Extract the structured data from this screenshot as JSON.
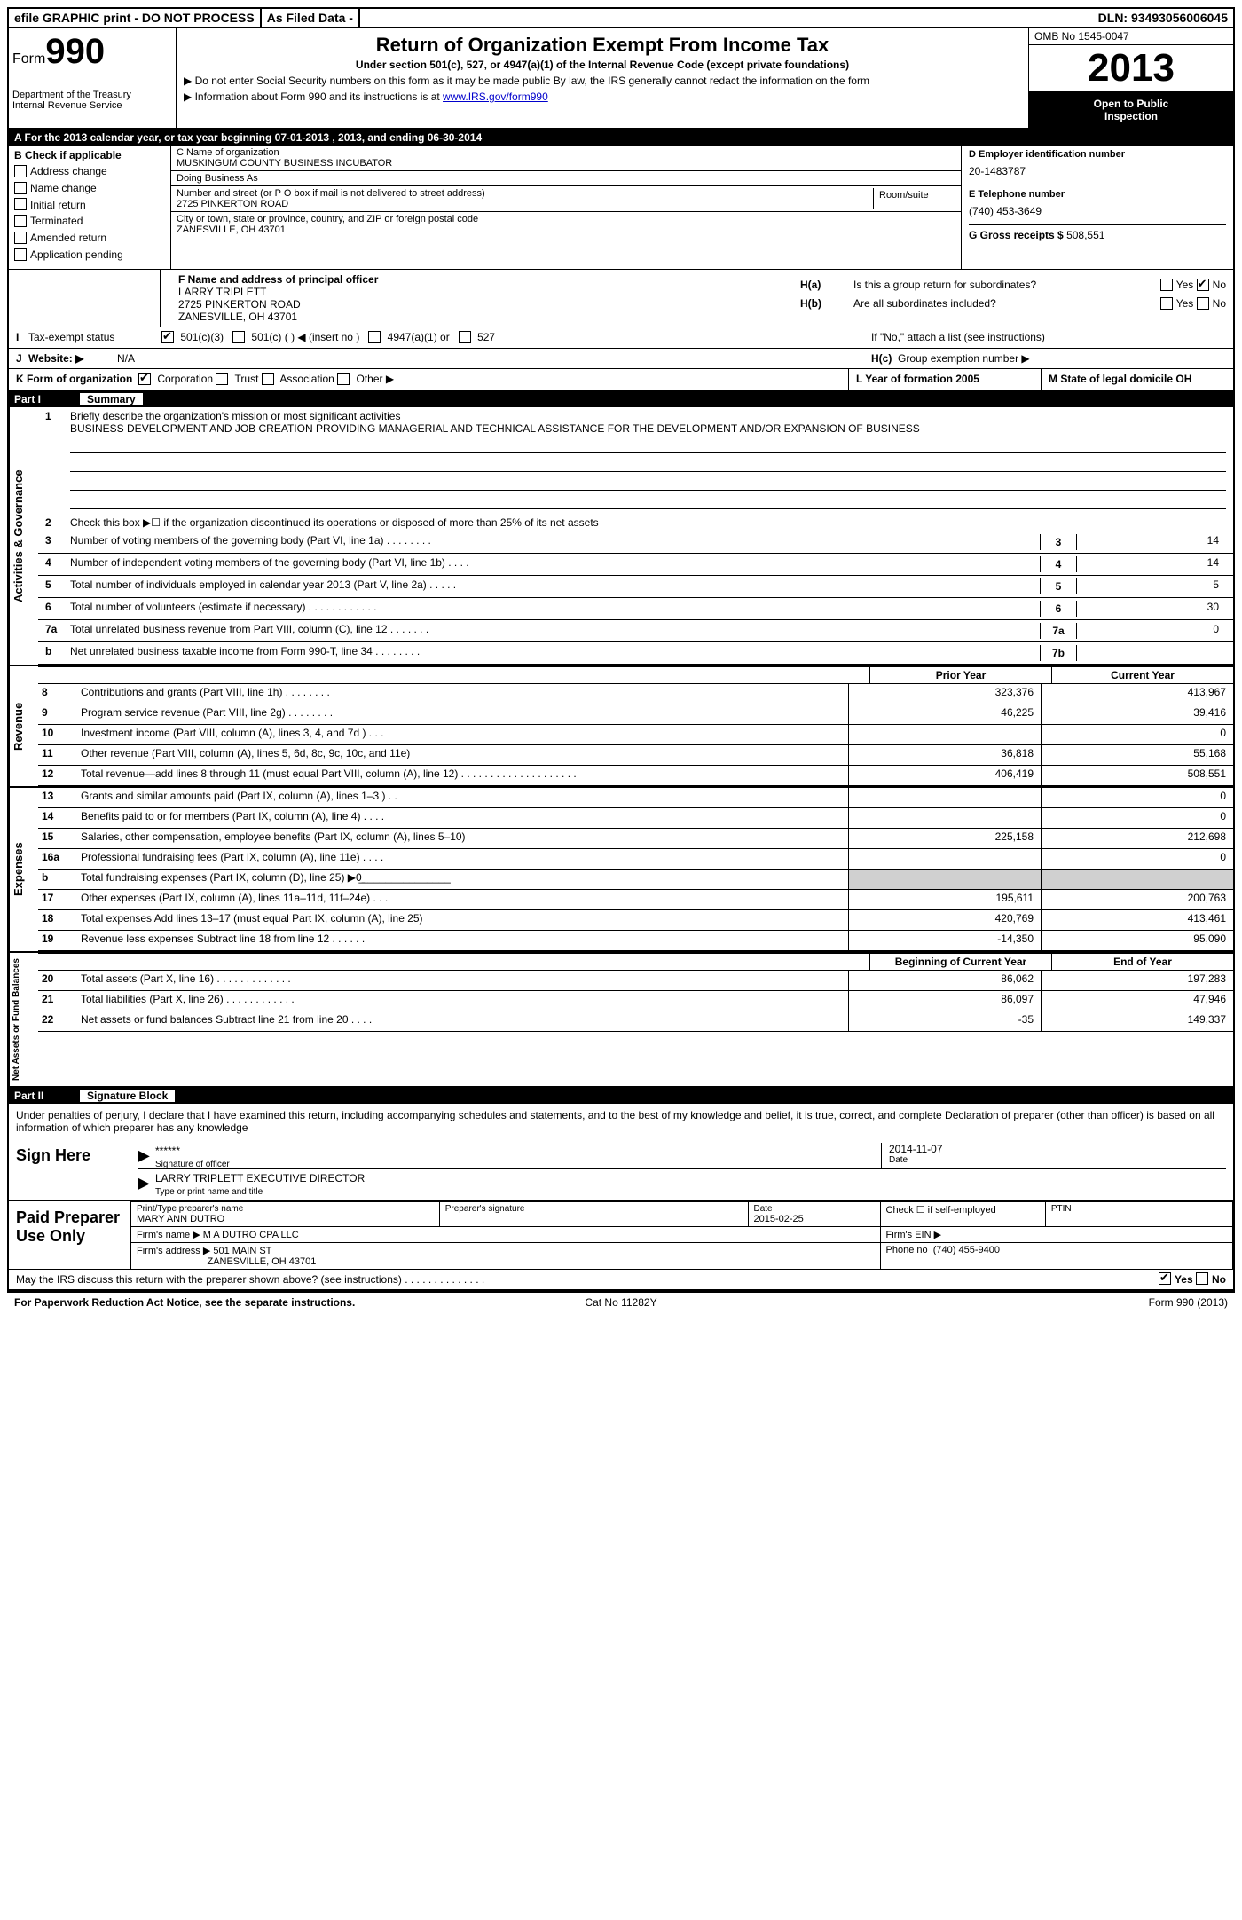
{
  "top_bar": {
    "efile": "efile GRAPHIC print - DO NOT PROCESS",
    "as_filed": "As Filed Data -",
    "dln_label": "DLN:",
    "dln": "93493056006045"
  },
  "header": {
    "form_label": "Form",
    "form_number": "990",
    "dept1": "Department of the Treasury",
    "dept2": "Internal Revenue Service",
    "title": "Return of Organization Exempt From Income Tax",
    "subtitle": "Under section 501(c), 527, or 4947(a)(1) of the Internal Revenue Code (except private foundations)",
    "note1": "▶ Do not enter Social Security numbers on this form as it may be made public  By law, the IRS generally cannot redact the information on the form",
    "note2_prefix": "▶ Information about Form 990 and its instructions is at ",
    "note2_link": "www.IRS.gov/form990",
    "omb": "OMB No  1545-0047",
    "year": "2013",
    "open1": "Open to Public",
    "open2": "Inspection"
  },
  "row_a": "A  For the 2013 calendar year, or tax year beginning 07-01-2013     , 2013, and ending 06-30-2014",
  "col_b": {
    "header": "B  Check if applicable",
    "items": [
      "Address change",
      "Name change",
      "Initial return",
      "Terminated",
      "Amended return",
      "Application pending"
    ]
  },
  "col_c": {
    "name_label": "C Name of organization",
    "name": "MUSKINGUM COUNTY BUSINESS INCUBATOR",
    "dba_label": "Doing Business As",
    "dba": "",
    "addr_label": "Number and street (or P O  box if mail is not delivered to street address)",
    "addr": "2725 PINKERTON ROAD",
    "room_label": "Room/suite",
    "city_label": "City or town, state or province, country, and ZIP or foreign postal code",
    "city": "ZANESVILLE, OH  43701"
  },
  "col_d": {
    "ein_label": "D Employer identification number",
    "ein": "20-1483787",
    "phone_label": "E Telephone number",
    "phone": "(740) 453-3649",
    "gross_label": "G Gross receipts $",
    "gross": "508,551"
  },
  "col_f": {
    "label": "F  Name and address of principal officer",
    "name": "LARRY TRIPLETT",
    "addr1": "2725 PINKERTON ROAD",
    "addr2": "ZANESVILLE, OH  43701"
  },
  "col_h": {
    "ha_label": "H(a)",
    "ha_text": "Is this a group return for subordinates?",
    "hb_label": "H(b)",
    "hb_text": "Are all subordinates included?",
    "hb_note": "If \"No,\" attach a list  (see instructions)",
    "hc_label": "H(c)",
    "hc_text": "Group exemption number ▶",
    "yes": "Yes",
    "no": "No"
  },
  "row_i": {
    "letter": "I",
    "label": "Tax-exempt status",
    "opt1": "501(c)(3)",
    "opt2": "501(c) (   ) ◀ (insert no )",
    "opt3": "4947(a)(1) or",
    "opt4": "527"
  },
  "row_j": {
    "letter": "J",
    "label": "Website: ▶",
    "val": "N/A"
  },
  "row_k": {
    "k_label": "K Form of organization",
    "k_opts": [
      "Corporation",
      "Trust",
      "Association",
      "Other ▶"
    ],
    "l_label": "L Year of formation  2005",
    "m_label": "M State of legal domicile   OH"
  },
  "part1": {
    "num": "Part I",
    "title": "Summary"
  },
  "summary": {
    "tab1": "Activities & Governance",
    "line1_num": "1",
    "line1_text": "Briefly describe the organization's mission or most significant activities",
    "mission": "BUSINESS DEVELOPMENT AND JOB CREATION  PROVIDING MANAGERIAL AND TECHNICAL ASSISTANCE FOR THE DEVELOPMENT AND/OR EXPANSION OF BUSINESS",
    "line2_num": "2",
    "line2_text": "Check this box ▶☐ if the organization discontinued its operations or disposed of more than 25% of its net assets",
    "lines_gov": [
      {
        "n": "3",
        "t": "Number of voting members of the governing body (Part VI, line 1a)   .    .    .    .    .    .    .    .",
        "b": "3",
        "v": "14"
      },
      {
        "n": "4",
        "t": "Number of independent voting members of the governing body (Part VI, line 1b)    .    .    .    .",
        "b": "4",
        "v": "14"
      },
      {
        "n": "5",
        "t": "Total number of individuals employed in calendar year 2013 (Part V, line 2a)   .    .    .    .    .",
        "b": "5",
        "v": "5"
      },
      {
        "n": "6",
        "t": "Total number of volunteers (estimate if necessary)   .    .    .    .    .    .    .    .    .    .    .    .",
        "b": "6",
        "v": "30"
      },
      {
        "n": "7a",
        "t": "Total unrelated business revenue from Part VIII, column (C), line 12   .    .    .    .    .    .    .",
        "b": "7a",
        "v": "0"
      },
      {
        "n": "b",
        "t": "Net unrelated business taxable income from Form 990-T, line 34    .    .    .    .    .    .    .    .",
        "b": "7b",
        "v": ""
      }
    ],
    "col_prior": "Prior Year",
    "col_current": "Current Year",
    "tab2": "Revenue",
    "lines_rev": [
      {
        "n": "8",
        "t": "Contributions and grants (Part VIII, line 1h)    .    .    .    .    .    .    .    .",
        "p": "323,376",
        "c": "413,967"
      },
      {
        "n": "9",
        "t": "Program service revenue (Part VIII, line 2g)   .    .    .    .    .    .    .    .",
        "p": "46,225",
        "c": "39,416"
      },
      {
        "n": "10",
        "t": "Investment income (Part VIII, column (A), lines 3, 4, and 7d )   .    .    .",
        "p": "",
        "c": "0"
      },
      {
        "n": "11",
        "t": "Other revenue (Part VIII, column (A), lines 5, 6d, 8c, 9c, 10c, and 11e)",
        "p": "36,818",
        "c": "55,168"
      },
      {
        "n": "12",
        "t": "Total revenue—add lines 8 through 11 (must equal Part VIII, column (A), line 12)  .    .    .    .    .    .    .    .    .    .    .    .    .    .    .    .    .    .    .    .",
        "p": "406,419",
        "c": "508,551"
      }
    ],
    "tab3": "Expenses",
    "lines_exp": [
      {
        "n": "13",
        "t": "Grants and similar amounts paid (Part IX, column (A), lines 1–3 )    .    .",
        "p": "",
        "c": "0"
      },
      {
        "n": "14",
        "t": "Benefits paid to or for members (Part IX, column (A), line 4)    .    .    .    .",
        "p": "",
        "c": "0"
      },
      {
        "n": "15",
        "t": "Salaries, other compensation, employee benefits (Part IX, column (A), lines 5–10)",
        "p": "225,158",
        "c": "212,698"
      },
      {
        "n": "16a",
        "t": "Professional fundraising fees (Part IX, column (A), line 11e)    .    .    .    .",
        "p": "",
        "c": "0"
      },
      {
        "n": "b",
        "t": "Total fundraising expenses (Part IX, column (D), line 25) ▶0̲_______________",
        "p": "gray",
        "c": "gray"
      },
      {
        "n": "17",
        "t": "Other expenses (Part IX, column (A), lines 11a–11d, 11f–24e)    .    .    .",
        "p": "195,611",
        "c": "200,763"
      },
      {
        "n": "18",
        "t": "Total expenses  Add lines 13–17 (must equal Part IX, column (A), line 25)",
        "p": "420,769",
        "c": "413,461"
      },
      {
        "n": "19",
        "t": "Revenue less expenses  Subtract line 18 from line 12    .    .    .    .    .    .",
        "p": "-14,350",
        "c": "95,090"
      }
    ],
    "col_begin": "Beginning of Current Year",
    "col_end": "End of Year",
    "tab4": "Net Assets or Fund Balances",
    "lines_net": [
      {
        "n": "20",
        "t": "Total assets (Part X, line 16)   .    .    .    .    .    .    .    .    .    .    .    .    .",
        "p": "86,062",
        "c": "197,283"
      },
      {
        "n": "21",
        "t": "Total liabilities (Part X, line 26)    .    .    .    .    .    .    .    .    .    .    .    .",
        "p": "86,097",
        "c": "47,946"
      },
      {
        "n": "22",
        "t": "Net assets or fund balances  Subtract line 21 from line 20    .    .    .    .",
        "p": "-35",
        "c": "149,337"
      }
    ]
  },
  "part2": {
    "num": "Part II",
    "title": "Signature Block"
  },
  "sig": {
    "perjury": "Under penalties of perjury, I declare that I have examined this return, including accompanying schedules and statements, and to the best of my knowledge and belief, it is true, correct, and complete  Declaration of preparer (other than officer) is based on all information of which preparer has any knowledge",
    "sign_here": "Sign Here",
    "sig_val": "******",
    "sig_label": "Signature of officer",
    "sig_date": "2014-11-07",
    "sig_date_label": "Date",
    "name_val": "LARRY TRIPLETT  EXECUTIVE DIRECTOR",
    "name_label": "Type or print name and title",
    "paid": "Paid Preparer Use Only",
    "prep_name_label": "Print/Type preparer's name",
    "prep_name": "MARY ANN DUTRO",
    "prep_sig_label": "Preparer's signature",
    "prep_date_label": "Date",
    "prep_date": "2015-02-25",
    "prep_check": "Check ☐ if self-employed",
    "ptin_label": "PTIN",
    "firm_name_label": "Firm's name    ▶",
    "firm_name": "M A DUTRO CPA LLC",
    "firm_ein_label": "Firm's EIN ▶",
    "firm_addr_label": "Firm's address ▶",
    "firm_addr1": "501 MAIN ST",
    "firm_addr2": "ZANESVILLE, OH  43701",
    "firm_phone_label": "Phone no",
    "firm_phone": "(740) 455-9400",
    "discuss": "May the IRS discuss this return with the preparer shown above? (see instructions)    .    .    .    .    .    .    .    .    .    .    .    .    .    .",
    "yes": "Yes",
    "no": "No"
  },
  "footer": {
    "left": "For Paperwork Reduction Act Notice, see the separate instructions.",
    "center": "Cat  No  11282Y",
    "right": "Form 990 (2013)"
  }
}
